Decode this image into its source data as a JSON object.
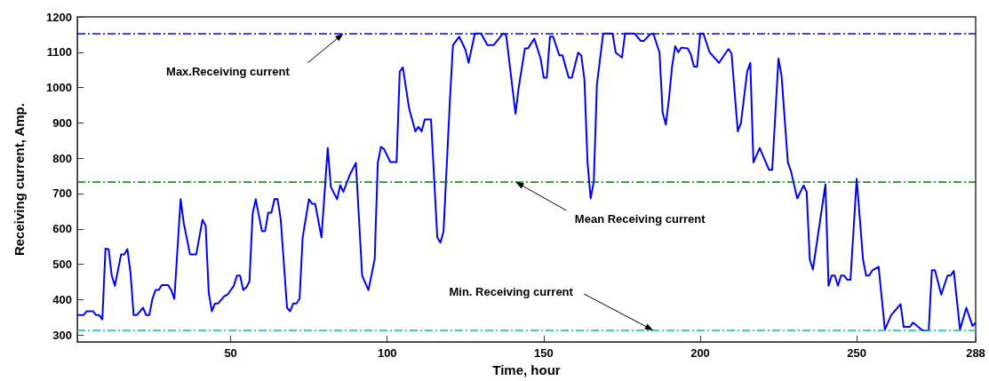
{
  "chart_data": {
    "type": "line",
    "xlabel": "Time, hour",
    "ylabel": "Receiving current, Amp.",
    "x": [
      1,
      3,
      4,
      6,
      7,
      8,
      9,
      10,
      11,
      12,
      13,
      15,
      16,
      17,
      18,
      19,
      20,
      22,
      23,
      24,
      25,
      26,
      27,
      28,
      30,
      31,
      32,
      33,
      34,
      35,
      37,
      39,
      41,
      42,
      43,
      44,
      45,
      46,
      48,
      49,
      51,
      52,
      53,
      54,
      55,
      56,
      57,
      58,
      59,
      60,
      61,
      62,
      63,
      64,
      65,
      66,
      68,
      69,
      70,
      71,
      72,
      73,
      75,
      76,
      77,
      79,
      81,
      82,
      84,
      85,
      86,
      88,
      90,
      92,
      94,
      96,
      97,
      98,
      99,
      101,
      103,
      104,
      105,
      107,
      109,
      110,
      111,
      112,
      114,
      116,
      117,
      118,
      120,
      121,
      123,
      125,
      126,
      128,
      130,
      132,
      134,
      137,
      138,
      141,
      142,
      144,
      145,
      147,
      149,
      150,
      151,
      152,
      153,
      155,
      156,
      158,
      159,
      161,
      162,
      163,
      164,
      165,
      166,
      167,
      169,
      172,
      173,
      175,
      176,
      179,
      181,
      182,
      184,
      185,
      187,
      188,
      189,
      190,
      191,
      192,
      193,
      194,
      196,
      197,
      198,
      199,
      200,
      201,
      203,
      206,
      209,
      210,
      212,
      213,
      215,
      216,
      217,
      219,
      222,
      223,
      225,
      226,
      228,
      229,
      231,
      233,
      234,
      235,
      236,
      240,
      241,
      242,
      243,
      244,
      245,
      246,
      247,
      248,
      250,
      252,
      253,
      254,
      255,
      257,
      259,
      261,
      264,
      265,
      267,
      268,
      271,
      273,
      274,
      275,
      277,
      279,
      280,
      281,
      283,
      285,
      287,
      288
    ],
    "series": [
      {
        "color": "#0000ff",
        "values": [
          356,
          356,
          367,
          367,
          356,
          356,
          344,
          544,
          543,
          468,
          439,
          528,
          528,
          543,
          476,
          356,
          356,
          377,
          356,
          356,
          402,
          427,
          427,
          441,
          441,
          427,
          402,
          543,
          684,
          617,
          528,
          528,
          626,
          609,
          418,
          367,
          389,
          389,
          410,
          414,
          439,
          468,
          468,
          427,
          435,
          451,
          642,
          684,
          638,
          594,
          594,
          646,
          646,
          685,
          684,
          626,
          377,
          367,
          389,
          389,
          402,
          576,
          684,
          671,
          671,
          576,
          829,
          719,
          684,
          724,
          705,
          752,
          787,
          468,
          427,
          514,
          787,
          832,
          826,
          789,
          789,
          1045,
          1057,
          941,
          876,
          889,
          876,
          910,
          910,
          576,
          561,
          593,
          958,
          1120,
          1144,
          1107,
          1070,
          1153,
          1153,
          1120,
          1120,
          1153,
          1149,
          926,
          999,
          1111,
          1111,
          1138,
          1082,
          1028,
          1028,
          1144,
          1144,
          1091,
          1091,
          1028,
          1028,
          1099,
          1091,
          1024,
          788,
          686,
          734,
          1008,
          1153,
          1153,
          1099,
          1085,
          1153,
          1153,
          1132,
          1132,
          1151,
          1153,
          1099,
          929,
          895,
          966,
          1059,
          1117,
          1100,
          1113,
          1111,
          1094,
          1059,
          1059,
          1153,
          1153,
          1100,
          1070,
          1109,
          1097,
          876,
          899,
          1045,
          1070,
          788,
          829,
          767,
          767,
          1082,
          1032,
          788,
          763,
          686,
          723,
          705,
          514,
          485,
          726,
          439,
          468,
          468,
          439,
          468,
          468,
          456,
          456,
          742,
          514,
          468,
          468,
          483,
          493,
          315,
          356,
          387,
          323,
          323,
          335,
          313,
          313,
          483,
          483,
          414,
          468,
          468,
          481,
          315,
          377,
          325,
          335
        ]
      }
    ],
    "xlim": [
      1,
      288
    ],
    "xticks": [
      50,
      100,
      150,
      200,
      250,
      288
    ],
    "ylim": [
      280,
      1200
    ],
    "yticks": [
      300,
      400,
      500,
      600,
      700,
      800,
      900,
      1000,
      1100,
      1200
    ],
    "grid": false,
    "marker": "none",
    "line_style": "solid",
    "ref_lines": [
      {
        "axis": "y",
        "value": 1153,
        "label": "Max.Receiving current",
        "color": "#0000ff",
        "line_style": "dashed"
      },
      {
        "axis": "y",
        "value": 733,
        "label": "Mean Receiving current",
        "color": "#008000",
        "line_style": "dashed"
      },
      {
        "axis": "y",
        "value": 313,
        "label": "Min. Receiving current",
        "color": "#00bfbf",
        "line_style": "dashed"
      }
    ]
  }
}
